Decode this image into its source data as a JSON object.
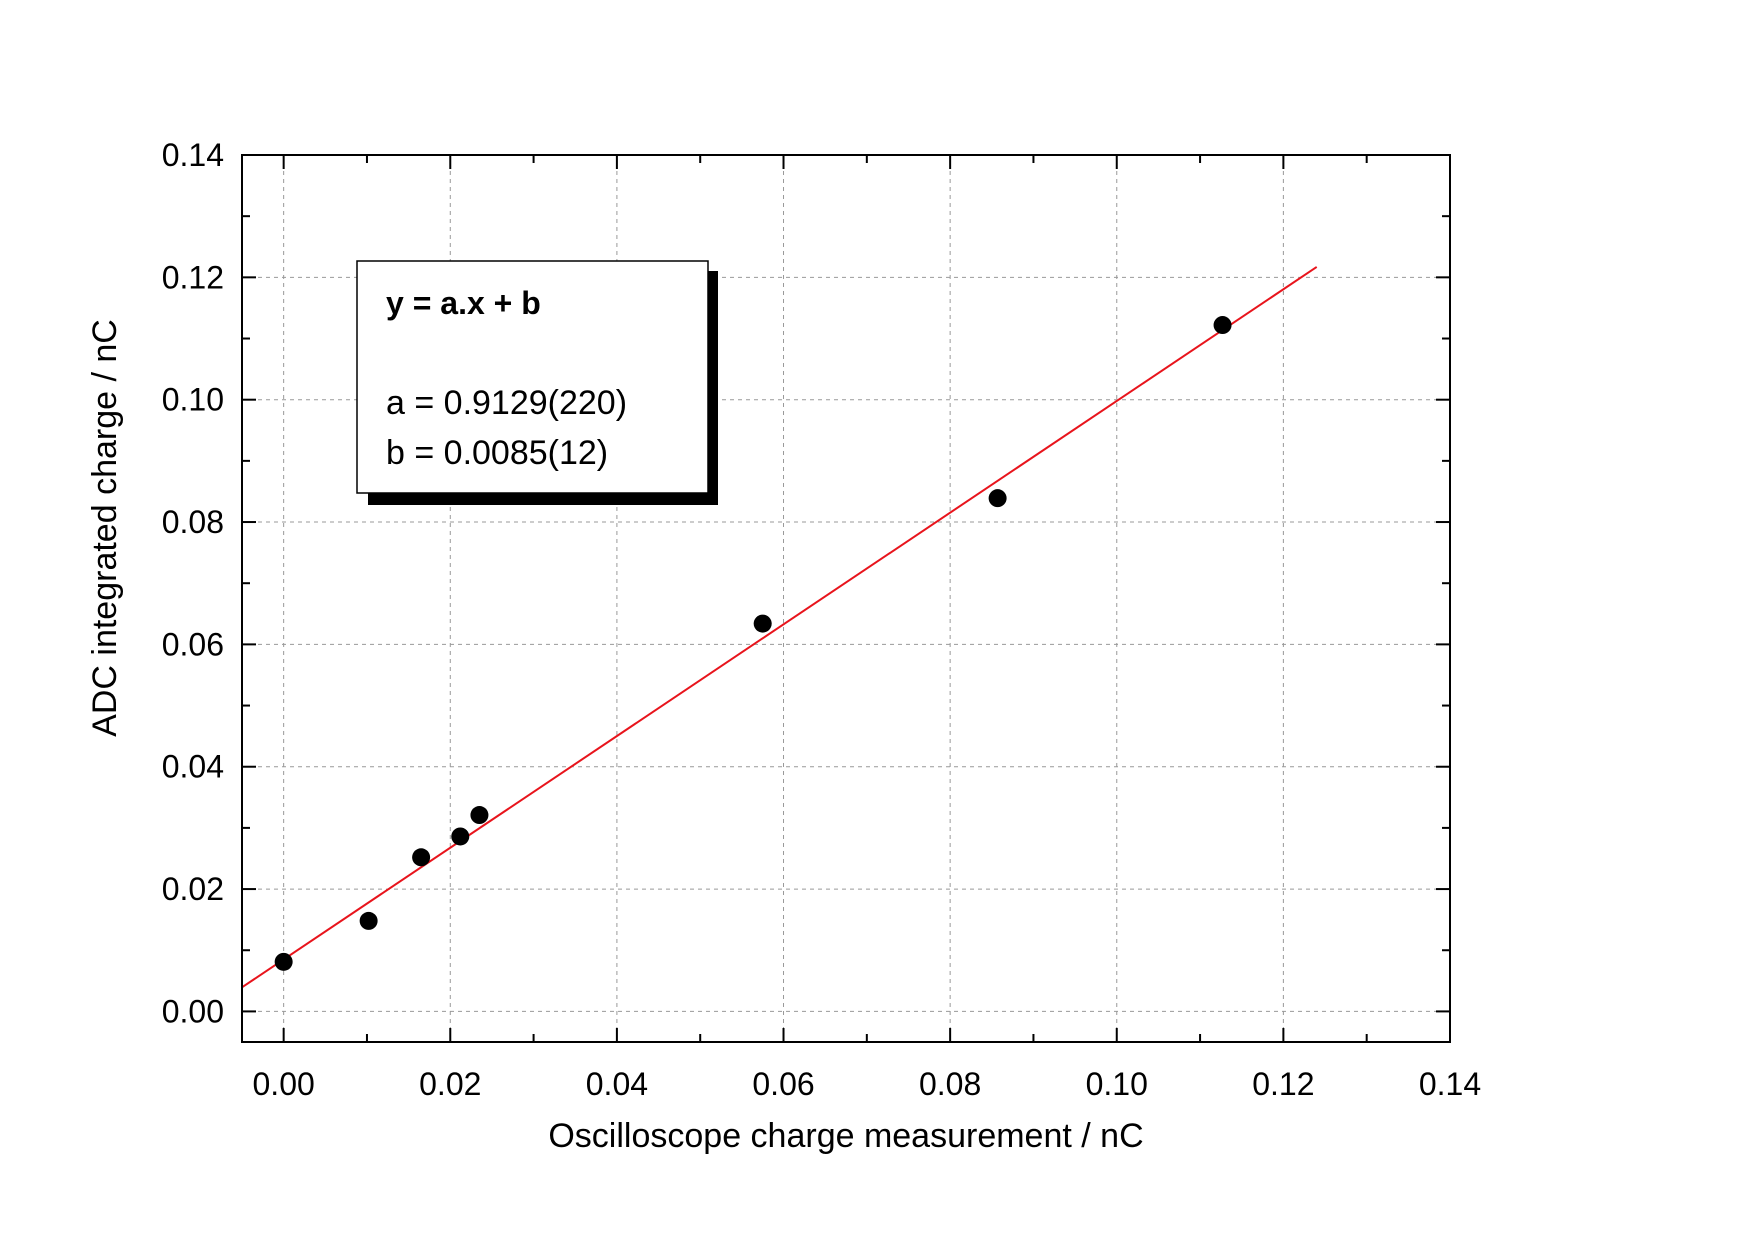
{
  "chart_data": {
    "type": "scatter",
    "xlabel": "Oscilloscope charge measurement / nC",
    "ylabel": "ADC integrated charge / nC",
    "xlim": [
      -0.005,
      0.14
    ],
    "ylim": [
      -0.005,
      0.14
    ],
    "x_ticks": [
      "0.00",
      "0.02",
      "0.04",
      "0.06",
      "0.08",
      "0.10",
      "0.12",
      "0.14"
    ],
    "y_ticks": [
      "0.00",
      "0.02",
      "0.04",
      "0.06",
      "0.08",
      "0.10",
      "0.12",
      "0.14"
    ],
    "grid": true,
    "points": {
      "x": [
        0.0,
        0.0102,
        0.0165,
        0.0212,
        0.0235,
        0.0575,
        0.0857,
        0.1127
      ],
      "y": [
        0.0081,
        0.0148,
        0.0252,
        0.0286,
        0.0321,
        0.0634,
        0.0839,
        0.1122
      ]
    },
    "fit": {
      "a": 0.9129,
      "b": 0.0085,
      "x_range": [
        -0.005,
        0.124
      ],
      "color": "#e8141c"
    },
    "marker_color": "#000000",
    "legend": {
      "placement": "top-left",
      "equation": "y = a.x + b",
      "a_text": "a = 0.9129(220)",
      "b_text": "b = 0.0085(12)"
    }
  }
}
